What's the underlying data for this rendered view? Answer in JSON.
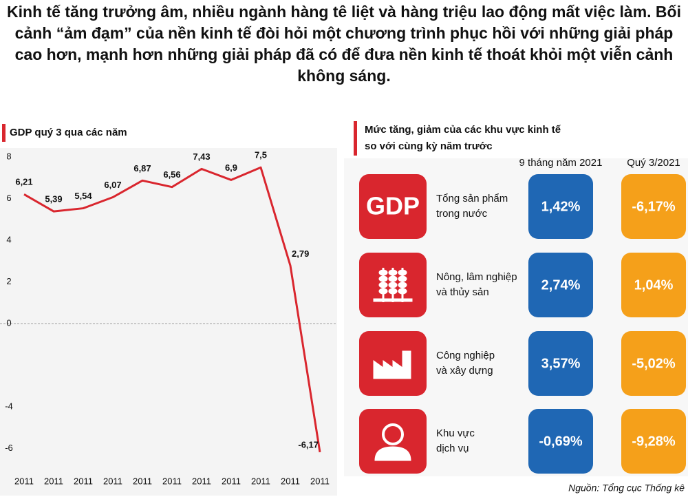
{
  "header": {
    "text": "Kinh tế tăng trưởng âm, nhiều ngành hàng tê liệt và hàng triệu lao động mất việc làm. Bối cảnh “ảm đạm” của nền kinh tế đòi hỏi một chương trình phục hồi với những giải pháp cao hơn, mạnh hơn những giải pháp đã có để đưa nền kinh tế thoát khỏi một viễn cảnh không sáng."
  },
  "chart_data": {
    "type": "line",
    "title": "GDP quý 3 qua các năm",
    "categories": [
      "2011",
      "2011",
      "2011",
      "2011",
      "2011",
      "2011",
      "2011",
      "2011",
      "2011",
      "2011",
      "2011"
    ],
    "series": [
      {
        "color": "#d9262e",
        "values": [
          6.21,
          5.39,
          5.54,
          6.07,
          6.87,
          6.56,
          7.43,
          6.9,
          7.5,
          2.79,
          -6.17
        ],
        "value_labels": [
          "6,21",
          "5,39",
          "5,54",
          "6,07",
          "6,87",
          "6,56",
          "7,43",
          "6,9",
          "7,5",
          "2,79",
          "-6,17"
        ]
      }
    ],
    "ylim": [
      -7,
      8.5
    ],
    "yticks": [
      8,
      6,
      4,
      2,
      0,
      -4,
      -6
    ]
  },
  "table": {
    "title": [
      "Mức tăng, giảm của các khu vực kinh tế",
      "so với cùng kỳ năm trước"
    ],
    "columns": [
      "9 tháng năm 2021",
      "Quý 3/2021"
    ],
    "rows": [
      {
        "icon": "GDP",
        "label": [
          "Tổng sản phẩm",
          "trong nước"
        ],
        "values": [
          "1,42%",
          "-6,17%"
        ]
      },
      {
        "label": [
          "Nông, lâm nghiệp",
          "và thủy sản"
        ],
        "values": [
          "2,74%",
          "1,04%"
        ]
      },
      {
        "label": [
          "Công nghiệp",
          "và xây dựng"
        ],
        "values": [
          "3,57%",
          "-5,02%"
        ]
      },
      {
        "label": [
          "Khu vực",
          "dịch vụ"
        ],
        "values": [
          "-0,69%",
          "-9,28%"
        ]
      }
    ],
    "source": "Nguồn: Tổng cục Thống kê"
  }
}
